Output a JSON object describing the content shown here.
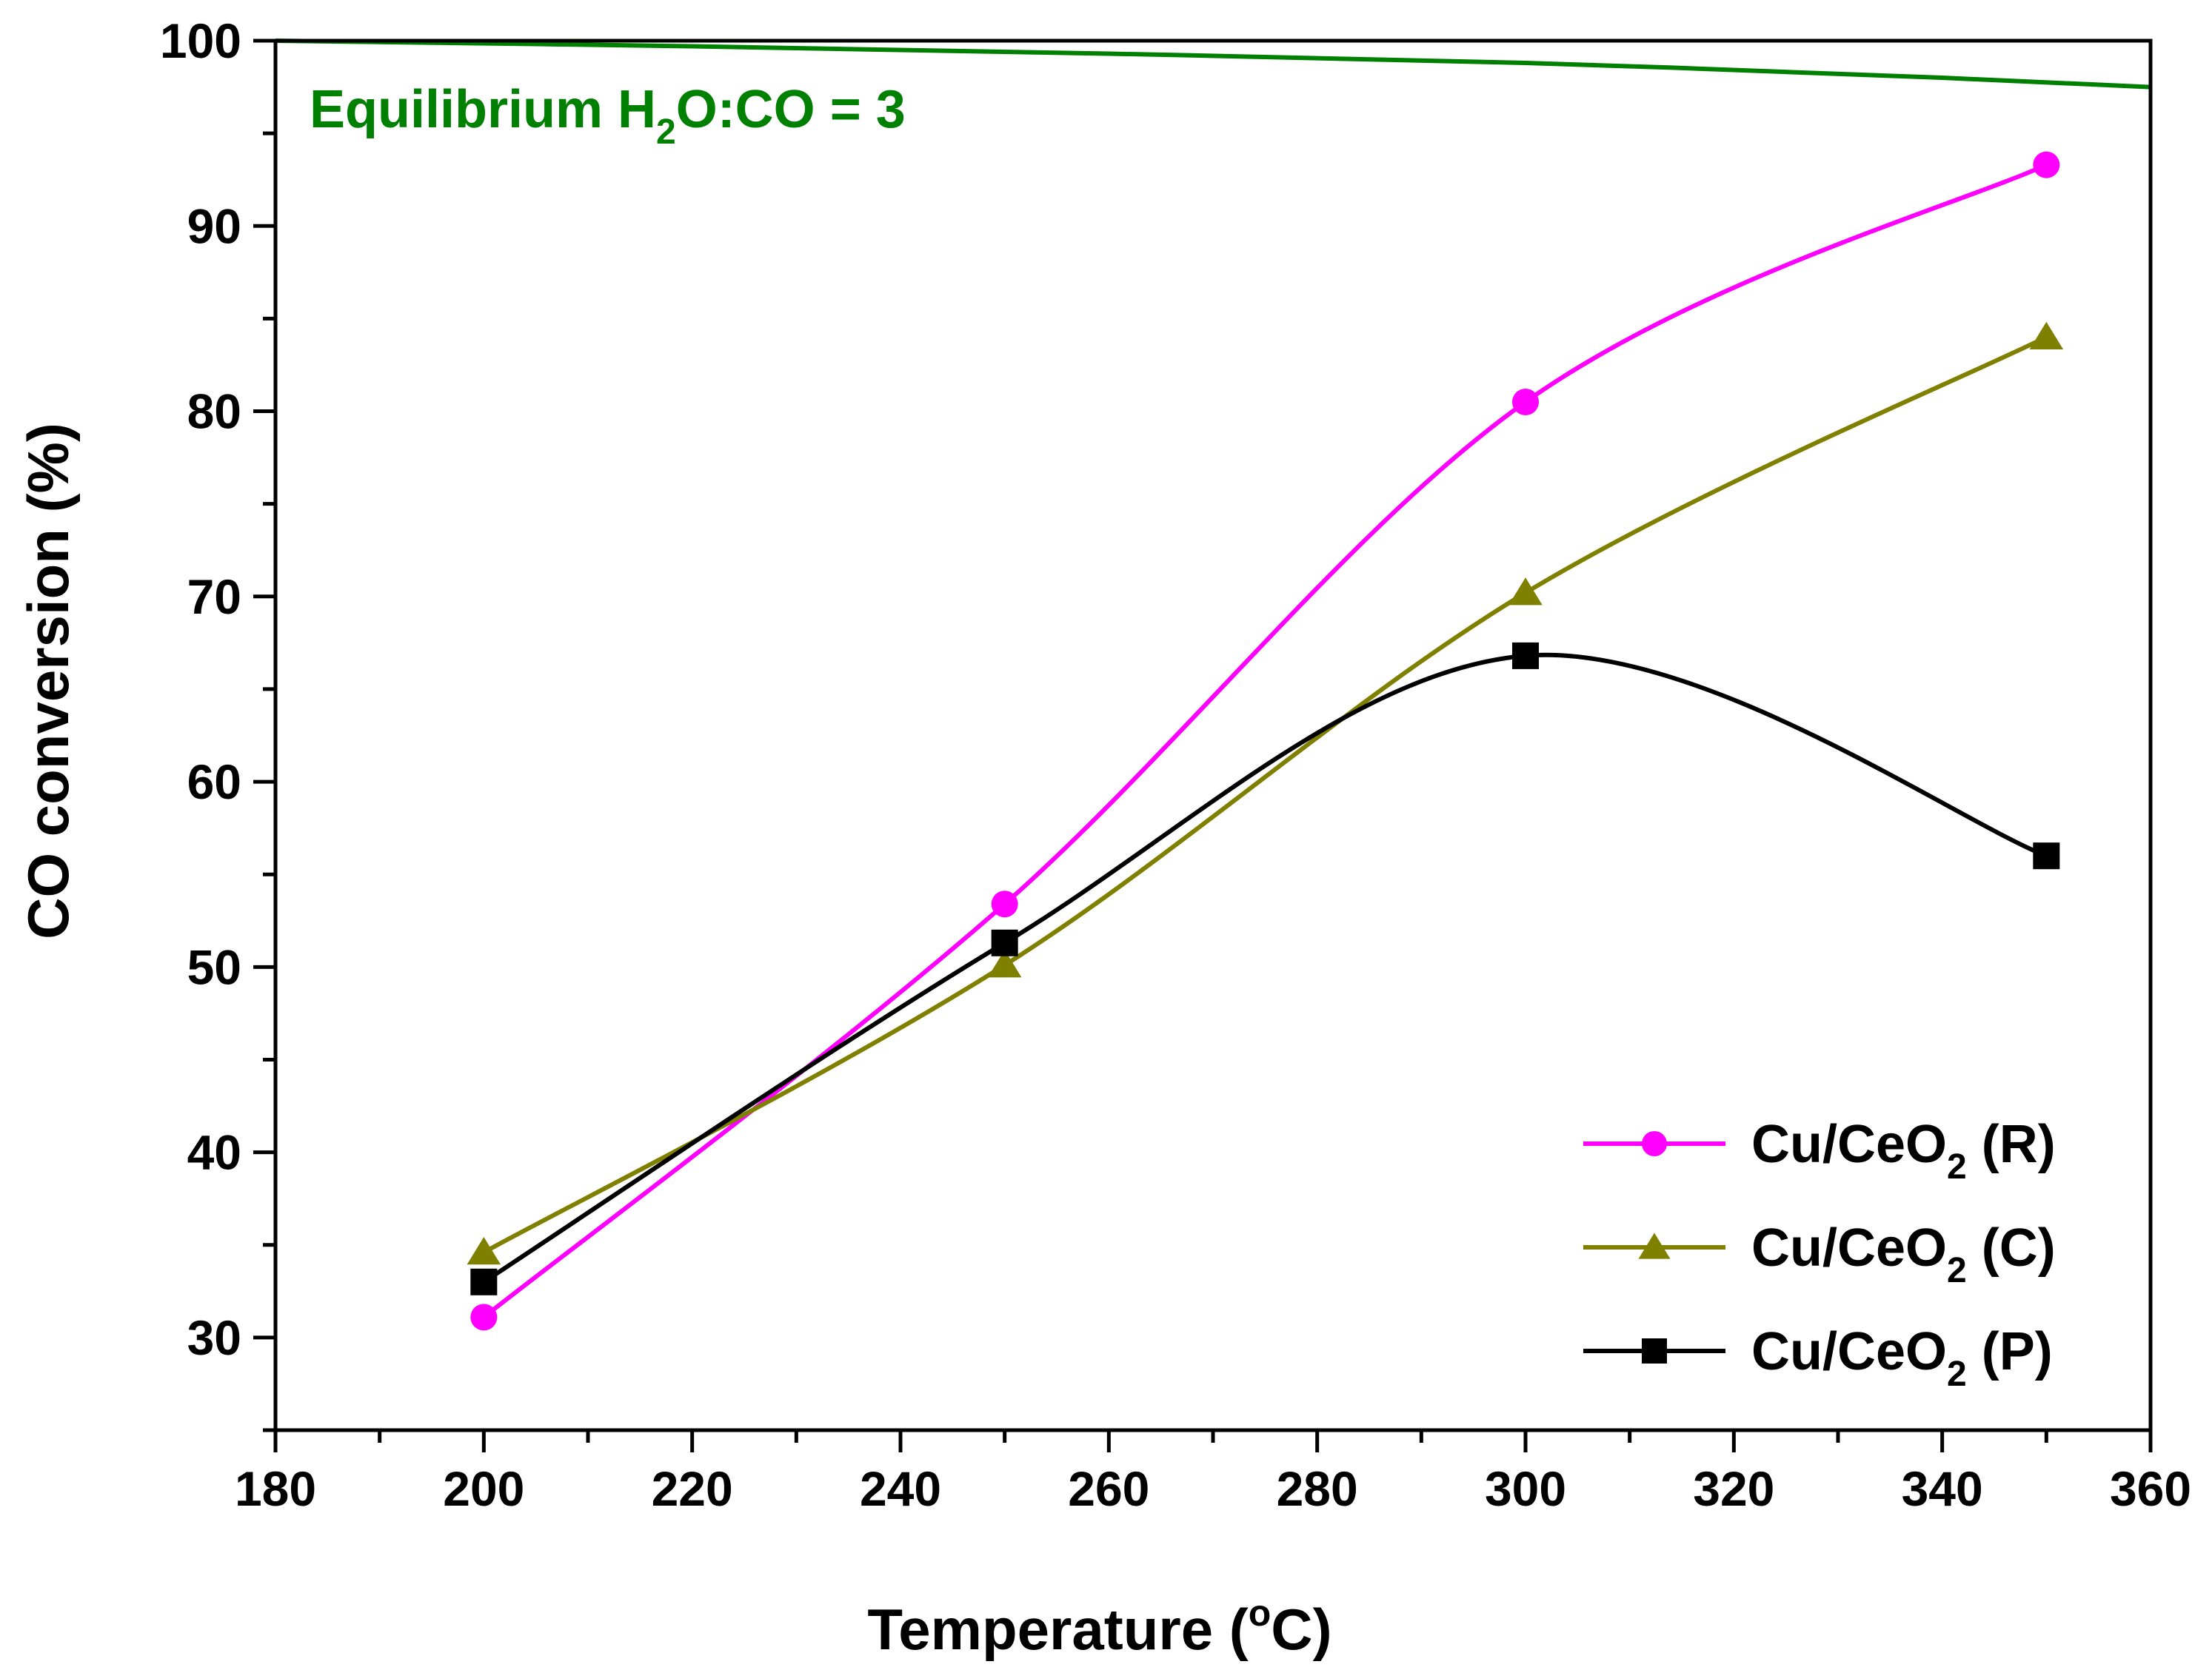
{
  "chart_data": {
    "type": "line",
    "xlabel": {
      "prefix": "Temperature (",
      "superscript": "o",
      "suffix": "C)"
    },
    "ylabel": "CO conversion (%)",
    "xlim": [
      180,
      360
    ],
    "ylim": [
      25,
      100
    ],
    "xticks": [
      180,
      200,
      220,
      240,
      260,
      280,
      300,
      320,
      340,
      360
    ],
    "yticks": [
      30,
      40,
      50,
      60,
      70,
      80,
      90,
      100
    ],
    "x": [
      200,
      250,
      300,
      350
    ],
    "series": [
      {
        "name": "Cu/CeO2 (R)",
        "label_main": "Cu/CeO",
        "label_sub": "2",
        "label_suffix": " (R)",
        "color": "#ff00ff",
        "marker": "circle",
        "values": [
          31.1,
          53.4,
          80.5,
          93.3
        ]
      },
      {
        "name": "Cu/CeO2 (C)",
        "label_main": "Cu/CeO",
        "label_sub": "2",
        "label_suffix": " (C)",
        "color": "#808000",
        "marker": "triangle",
        "values": [
          34.6,
          50.1,
          70.2,
          84.0
        ]
      },
      {
        "name": "Cu/CeO2 (P)",
        "label_main": "Cu/CeO",
        "label_sub": "2",
        "label_suffix": " (P)",
        "color": "#000000",
        "marker": "square",
        "values": [
          33.0,
          51.3,
          66.8,
          56.0
        ]
      }
    ],
    "equilibrium": {
      "color": "#008000",
      "label_prefix": "Equilibrium H",
      "label_sub": "2",
      "label_suffix": "O:CO = 3",
      "x": [
        180,
        220,
        260,
        300,
        340,
        360
      ],
      "values": [
        100.0,
        99.7,
        99.3,
        98.8,
        98.0,
        97.5
      ]
    },
    "legend_position": "bottom-right"
  }
}
